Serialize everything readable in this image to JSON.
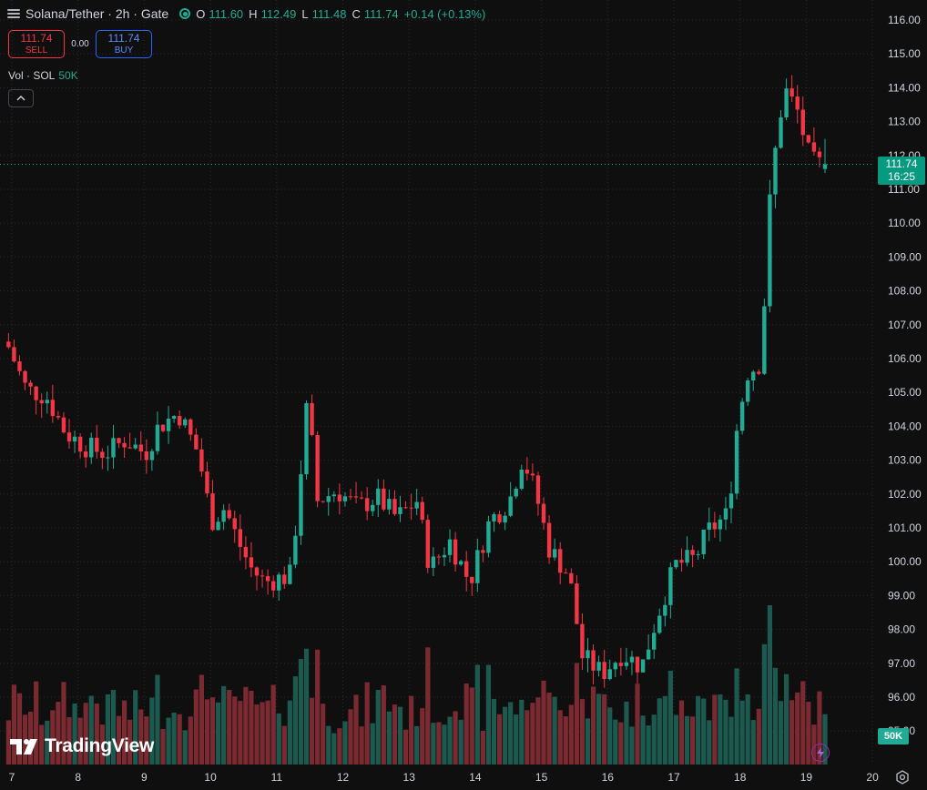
{
  "header": {
    "title": "Solana/Tether · 2h · Gate",
    "ohlc": {
      "o_label": "O",
      "o_value": "111.60",
      "h_label": "H",
      "h_value": "112.49",
      "l_label": "L",
      "l_value": "111.48",
      "c_label": "C",
      "c_value": "111.74",
      "change": "+0.14 (+0.13%)"
    }
  },
  "trade": {
    "sell_price": "111.74",
    "sell_label": "SELL",
    "spread": "0.00",
    "buy_price": "111.74",
    "buy_label": "BUY"
  },
  "volume_legend": {
    "label": "Vol · SOL",
    "value": "50K"
  },
  "price_axis": {
    "ticks": [
      "116.00",
      "115.00",
      "114.00",
      "113.00",
      "112.00",
      "111.00",
      "110.00",
      "109.00",
      "108.00",
      "107.00",
      "106.00",
      "105.00",
      "104.00",
      "103.00",
      "102.00",
      "101.00",
      "100.00",
      "99.00",
      "98.00",
      "97.00",
      "96.00",
      "95.00"
    ],
    "current_price": "111.74",
    "countdown": "16:25",
    "volume_tag": "50K"
  },
  "time_axis": {
    "ticks": [
      "7",
      "8",
      "9",
      "10",
      "11",
      "12",
      "13",
      "14",
      "15",
      "16",
      "17",
      "18",
      "19",
      "20"
    ]
  },
  "colors": {
    "up": "#22ab94",
    "down": "#f23645",
    "up_vol": "#1c5a50",
    "down_vol": "#7a2a30",
    "grid": "#2a2a2a",
    "bg": "#0f0f0f"
  },
  "logo": {
    "text": "TradingView"
  },
  "chart_data": {
    "type": "candlestick",
    "x_range": [
      "7",
      "20"
    ],
    "ylim": [
      95,
      116
    ],
    "anchors": [
      {
        "day": 7.0,
        "close": 106.5
      },
      {
        "day": 7.3,
        "close": 105.1
      },
      {
        "day": 7.6,
        "close": 104.9
      },
      {
        "day": 7.9,
        "close": 103.8
      },
      {
        "day": 8.2,
        "close": 103.4
      },
      {
        "day": 8.5,
        "close": 103.2
      },
      {
        "day": 8.8,
        "close": 103.6
      },
      {
        "day": 9.1,
        "close": 103.2
      },
      {
        "day": 9.3,
        "close": 104.0
      },
      {
        "day": 9.6,
        "close": 104.4
      },
      {
        "day": 9.9,
        "close": 103.2
      },
      {
        "day": 10.1,
        "close": 101.2
      },
      {
        "day": 10.3,
        "close": 101.6
      },
      {
        "day": 10.5,
        "close": 100.6
      },
      {
        "day": 10.7,
        "close": 99.8
      },
      {
        "day": 10.9,
        "close": 99.4
      },
      {
        "day": 11.3,
        "close": 99.6
      },
      {
        "day": 11.55,
        "close": 104.8
      },
      {
        "day": 11.7,
        "close": 101.8
      },
      {
        "day": 12.0,
        "close": 102.1
      },
      {
        "day": 12.3,
        "close": 101.6
      },
      {
        "day": 12.6,
        "close": 101.9
      },
      {
        "day": 12.9,
        "close": 101.3
      },
      {
        "day": 13.2,
        "close": 101.8
      },
      {
        "day": 13.4,
        "close": 99.8
      },
      {
        "day": 13.7,
        "close": 100.6
      },
      {
        "day": 14.0,
        "close": 99.4
      },
      {
        "day": 14.3,
        "close": 101.2
      },
      {
        "day": 14.6,
        "close": 101.8
      },
      {
        "day": 14.8,
        "close": 103.1
      },
      {
        "day": 15.0,
        "close": 102.0
      },
      {
        "day": 15.2,
        "close": 100.4
      },
      {
        "day": 15.5,
        "close": 99.6
      },
      {
        "day": 15.7,
        "close": 97.2
      },
      {
        "day": 16.0,
        "close": 96.7
      },
      {
        "day": 16.3,
        "close": 97.3
      },
      {
        "day": 16.6,
        "close": 96.9
      },
      {
        "day": 16.8,
        "close": 98.2
      },
      {
        "day": 17.1,
        "close": 99.9
      },
      {
        "day": 17.4,
        "close": 100.1
      },
      {
        "day": 17.6,
        "close": 100.9
      },
      {
        "day": 17.9,
        "close": 101.4
      },
      {
        "day": 18.05,
        "close": 104.2
      },
      {
        "day": 18.2,
        "close": 105.6
      },
      {
        "day": 18.4,
        "close": 105.9
      },
      {
        "day": 18.55,
        "close": 111.2
      },
      {
        "day": 18.75,
        "close": 114.0
      },
      {
        "day": 18.95,
        "close": 113.3
      },
      {
        "day": 19.15,
        "close": 111.8
      },
      {
        "day": 19.3,
        "close": 111.74
      }
    ]
  }
}
